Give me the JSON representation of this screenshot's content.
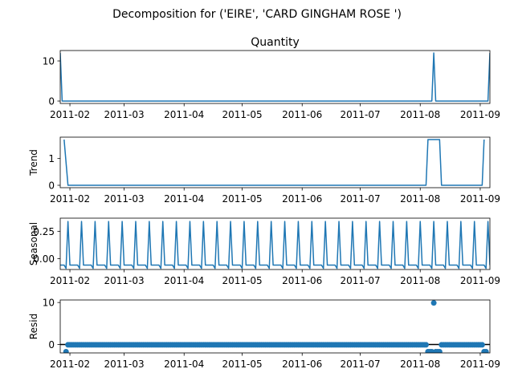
{
  "figure": {
    "title": "Decomposition for ('EIRE', 'CARD GINGHAM ROSE ')"
  },
  "chart_data": [
    {
      "type": "line",
      "title": "Quantity",
      "ylabel": "",
      "xlim": [
        "2011-01-27",
        "2011-09-06"
      ],
      "ylim": [
        -0.6,
        12.6
      ],
      "yticks": [
        0,
        10
      ],
      "xticks": [
        "2011-02-01",
        "2011-03-01",
        "2011-04-01",
        "2011-05-01",
        "2011-06-01",
        "2011-07-01",
        "2011-08-01",
        "2011-09-01"
      ],
      "xtick_labels": [
        "2011-02",
        "2011-03",
        "2011-04",
        "2011-05",
        "2011-06",
        "2011-07",
        "2011-08",
        "2011-09"
      ],
      "color": "#1f77b4",
      "points": [
        [
          "2011-01-27",
          12
        ],
        [
          "2011-01-28",
          0
        ],
        [
          "2011-08-07",
          0
        ],
        [
          "2011-08-08",
          12
        ],
        [
          "2011-08-09",
          0
        ],
        [
          "2011-09-05",
          0
        ],
        [
          "2011-09-06",
          12
        ]
      ]
    },
    {
      "type": "line",
      "title": "",
      "ylabel": "Trend",
      "xlim": [
        "2011-01-27",
        "2011-09-06"
      ],
      "ylim": [
        -0.09,
        1.8
      ],
      "yticks": [
        0,
        1
      ],
      "xticks": [
        "2011-02-01",
        "2011-03-01",
        "2011-04-01",
        "2011-05-01",
        "2011-06-01",
        "2011-07-01",
        "2011-08-01",
        "2011-09-01"
      ],
      "xtick_labels": [
        "2011-02",
        "2011-03",
        "2011-04",
        "2011-05",
        "2011-06",
        "2011-07",
        "2011-08",
        "2011-09"
      ],
      "color": "#1f77b4",
      "points": [
        [
          "2011-01-29",
          1.71
        ],
        [
          "2011-01-31",
          0
        ],
        [
          "2011-08-04",
          0
        ],
        [
          "2011-08-05",
          1.71
        ],
        [
          "2011-08-11",
          1.71
        ],
        [
          "2011-08-12",
          0
        ],
        [
          "2011-09-02",
          0
        ],
        [
          "2011-09-03",
          1.71
        ]
      ]
    },
    {
      "type": "line",
      "title": "",
      "ylabel": "Seasonal",
      "xlim": [
        "2011-01-27",
        "2011-09-06"
      ],
      "ylim": [
        -0.1,
        0.37
      ],
      "yticks": [
        0.0,
        0.25
      ],
      "ytick_labels": [
        "0.00",
        "0.25"
      ],
      "xticks": [
        "2011-02-01",
        "2011-03-01",
        "2011-04-01",
        "2011-05-01",
        "2011-06-01",
        "2011-07-01",
        "2011-08-01",
        "2011-09-01"
      ],
      "xtick_labels": [
        "2011-02",
        "2011-03",
        "2011-04",
        "2011-05",
        "2011-06",
        "2011-07",
        "2011-08",
        "2011-09"
      ],
      "color": "#1f77b4",
      "period_days": 7,
      "first_date": "2011-01-27",
      "last_date": "2011-09-06",
      "weekly_pattern": [
        -0.06,
        -0.06,
        -0.06,
        -0.09,
        0.34,
        -0.06,
        -0.06
      ]
    },
    {
      "type": "scatter",
      "title": "",
      "ylabel": "Resid",
      "xlim": [
        "2011-01-27",
        "2011-09-06"
      ],
      "ylim": [
        -2.0,
        10.6
      ],
      "yticks": [
        0,
        10
      ],
      "xticks": [
        "2011-02-01",
        "2011-03-01",
        "2011-04-01",
        "2011-05-01",
        "2011-06-01",
        "2011-07-01",
        "2011-08-01",
        "2011-09-01"
      ],
      "xtick_labels": [
        "2011-02",
        "2011-03",
        "2011-04",
        "2011-05",
        "2011-06",
        "2011-07",
        "2011-08",
        "2011-09"
      ],
      "color": "#1f77b4",
      "zero_line": true,
      "first_date": "2011-01-30",
      "last_date": "2011-09-04",
      "default_value": -0.06,
      "special_points": [
        [
          "2011-01-30",
          -1.71
        ],
        [
          "2011-08-05",
          -1.71
        ],
        [
          "2011-08-06",
          -1.71
        ],
        [
          "2011-08-07",
          -1.71
        ],
        [
          "2011-08-08",
          9.9
        ],
        [
          "2011-08-09",
          -1.71
        ],
        [
          "2011-08-10",
          -1.71
        ],
        [
          "2011-08-11",
          -1.71
        ],
        [
          "2011-09-03",
          -1.71
        ],
        [
          "2011-09-04",
          -1.71
        ]
      ]
    }
  ]
}
